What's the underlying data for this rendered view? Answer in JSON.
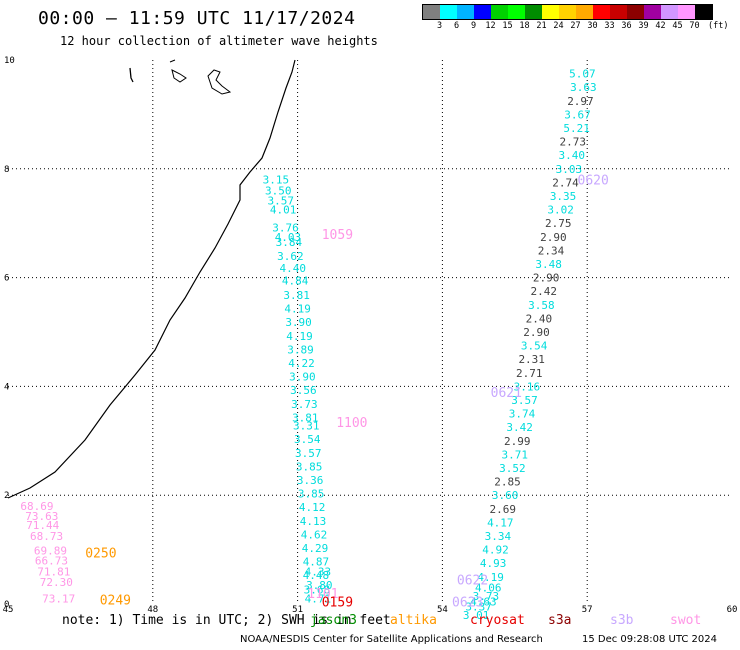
{
  "title": "00:00 – 11:59 UTC 11/17/2024",
  "subtitle": "12 hour collection of altimeter wave heights",
  "colorbar": {
    "unit": "(ft)",
    "labels": [
      "3",
      "6",
      "9",
      "12",
      "15",
      "18",
      "21",
      "24",
      "27",
      "30",
      "33",
      "36",
      "39",
      "42",
      "45",
      "70"
    ],
    "colors": [
      "#808080",
      "#00ffff",
      "#00b4ff",
      "#0000ff",
      "#00d200",
      "#00ff00",
      "#008c00",
      "#ffff00",
      "#ffd200",
      "#ffaa00",
      "#ff0000",
      "#c80000",
      "#8c0000",
      "#a000a0",
      "#d296ff",
      "#ff96ff",
      "#000000"
    ]
  },
  "footer": {
    "note": "note: 1) Time is in UTC; 2) SWH is in feet",
    "satellites": [
      {
        "name": "jason3",
        "color": "#008c00"
      },
      {
        "name": "altika",
        "color": "#ff9900"
      },
      {
        "name": "cryosat",
        "color": "#e60000"
      },
      {
        "name": "s3a",
        "color": "#8c0000"
      },
      {
        "name": "s3b",
        "color": "#c8a8ff"
      },
      {
        "name": "swot",
        "color": "#ff96e6"
      }
    ],
    "credit": "NOAA/NESDIS Center for Satellite Applications and Research",
    "generated": "15 Dec 09:28:08 UTC 2024"
  },
  "chart_data": {
    "type": "scatter",
    "title": "00:00 – 11:59 UTC 11/17/2024",
    "xlabel": "",
    "ylabel": "",
    "xlim": [
      45,
      60
    ],
    "ylim": [
      0,
      10
    ],
    "x_ticks": [
      45,
      48,
      51,
      54,
      57,
      60
    ],
    "y_ticks": [
      0,
      2,
      4,
      6,
      8,
      10
    ],
    "grid": true,
    "track_labels": [
      {
        "x": 51.5,
        "y": 6.8,
        "text": "1059",
        "color": "#ff96e6"
      },
      {
        "x": 51.8,
        "y": 3.35,
        "text": "1100",
        "color": "#ff96e6"
      },
      {
        "x": 51.2,
        "y": 0.2,
        "text": "1101",
        "color": "#ff96e6"
      },
      {
        "x": 51.5,
        "y": 0.05,
        "text": "0159",
        "color": "#e60000"
      },
      {
        "x": 46.6,
        "y": 0.95,
        "text": "0250",
        "color": "#ff9900"
      },
      {
        "x": 46.9,
        "y": 0.08,
        "text": "0249",
        "color": "#ff9900"
      },
      {
        "x": 56.8,
        "y": 7.8,
        "text": "0620",
        "color": "#c8a8ff"
      },
      {
        "x": 55.0,
        "y": 3.9,
        "text": "0621",
        "color": "#c8a8ff"
      },
      {
        "x": 54.3,
        "y": 0.45,
        "text": "0622",
        "color": "#c8a8ff"
      },
      {
        "x": 54.2,
        "y": 0.05,
        "text": "0623",
        "color": "#c8a8ff"
      }
    ],
    "series": [
      {
        "satellite": "swot",
        "color": "#ff96e6",
        "points": [
          {
            "x": 45.6,
            "y": 1.8,
            "v": "68.69"
          },
          {
            "x": 45.7,
            "y": 1.62,
            "v": "73.63"
          },
          {
            "x": 45.72,
            "y": 1.45,
            "v": "71.44"
          },
          {
            "x": 45.8,
            "y": 1.25,
            "v": "68.73"
          },
          {
            "x": 45.88,
            "y": 0.98,
            "v": "69.89"
          },
          {
            "x": 45.9,
            "y": 0.8,
            "v": "66.73"
          },
          {
            "x": 45.95,
            "y": 0.6,
            "v": "71.81"
          },
          {
            "x": 46.0,
            "y": 0.4,
            "v": "72.30"
          },
          {
            "x": 46.05,
            "y": 0.1,
            "v": "73.17"
          }
        ]
      },
      {
        "satellite": "s3b-cyan",
        "color": "#00dcdc",
        "points": [
          {
            "x": 50.55,
            "y": 7.8,
            "v": "3.15"
          },
          {
            "x": 50.6,
            "y": 7.6,
            "v": "3.50"
          },
          {
            "x": 50.65,
            "y": 7.42,
            "v": "3.57"
          },
          {
            "x": 50.7,
            "y": 7.25,
            "v": "4.01"
          },
          {
            "x": 50.75,
            "y": 6.92,
            "v": "3.76"
          },
          {
            "x": 50.8,
            "y": 6.75,
            "v": "4.03"
          },
          {
            "x": 50.82,
            "y": 6.65,
            "v": "3.84"
          },
          {
            "x": 50.85,
            "y": 6.4,
            "v": "3.62"
          },
          {
            "x": 50.9,
            "y": 6.18,
            "v": "4.40"
          },
          {
            "x": 50.95,
            "y": 5.95,
            "v": "4.84"
          },
          {
            "x": 50.98,
            "y": 5.68,
            "v": "3.81"
          },
          {
            "x": 51.0,
            "y": 5.43,
            "v": "4.19"
          },
          {
            "x": 51.02,
            "y": 5.18,
            "v": "3.90"
          },
          {
            "x": 51.04,
            "y": 4.93,
            "v": "4.19"
          },
          {
            "x": 51.06,
            "y": 4.68,
            "v": "3.89"
          },
          {
            "x": 51.08,
            "y": 4.43,
            "v": "4.22"
          },
          {
            "x": 51.1,
            "y": 4.18,
            "v": "3.90"
          },
          {
            "x": 51.12,
            "y": 3.93,
            "v": "3.56"
          },
          {
            "x": 51.14,
            "y": 3.68,
            "v": "3.73"
          },
          {
            "x": 51.16,
            "y": 3.43,
            "v": "3.81"
          },
          {
            "x": 51.18,
            "y": 3.28,
            "v": "3.31"
          },
          {
            "x": 51.2,
            "y": 3.03,
            "v": "3.54"
          },
          {
            "x": 51.22,
            "y": 2.78,
            "v": "3.57"
          },
          {
            "x": 51.24,
            "y": 2.53,
            "v": "3.85"
          },
          {
            "x": 51.26,
            "y": 2.28,
            "v": "3.36"
          },
          {
            "x": 51.28,
            "y": 2.03,
            "v": "3.85"
          },
          {
            "x": 51.3,
            "y": 1.78,
            "v": "4.12"
          },
          {
            "x": 51.32,
            "y": 1.53,
            "v": "4.13"
          },
          {
            "x": 51.34,
            "y": 1.28,
            "v": "4.62"
          },
          {
            "x": 51.36,
            "y": 1.03,
            "v": "4.29"
          },
          {
            "x": 51.38,
            "y": 0.78,
            "v": "4.87"
          },
          {
            "x": 51.42,
            "y": 0.6,
            "v": "4.33"
          },
          {
            "x": 51.38,
            "y": 0.53,
            "v": "4.48"
          },
          {
            "x": 51.45,
            "y": 0.35,
            "v": "3.80"
          },
          {
            "x": 51.4,
            "y": 0.27,
            "v": "3.68"
          },
          {
            "x": 51.42,
            "y": 0.1,
            "v": "4.71"
          }
        ]
      },
      {
        "satellite": "s3b-east",
        "mixed": true,
        "points": [
          {
            "x": 56.9,
            "y": 9.75,
            "v": "5.07",
            "color": "#00dcdc"
          },
          {
            "x": 56.92,
            "y": 9.5,
            "v": "3.63",
            "color": "#00dcdc"
          },
          {
            "x": 56.86,
            "y": 9.25,
            "v": "2.97",
            "color": "#404040"
          },
          {
            "x": 56.8,
            "y": 9.0,
            "v": "3.67",
            "color": "#00dcdc"
          },
          {
            "x": 56.78,
            "y": 8.75,
            "v": "5.21",
            "color": "#00dcdc"
          },
          {
            "x": 56.7,
            "y": 8.5,
            "v": "2.73",
            "color": "#404040"
          },
          {
            "x": 56.68,
            "y": 8.25,
            "v": "3.40",
            "color": "#00dcdc"
          },
          {
            "x": 56.62,
            "y": 8.0,
            "v": "3.03",
            "color": "#00dcdc"
          },
          {
            "x": 56.55,
            "y": 7.75,
            "v": "2.74",
            "color": "#404040"
          },
          {
            "x": 56.5,
            "y": 7.5,
            "v": "3.35",
            "color": "#00dcdc"
          },
          {
            "x": 56.45,
            "y": 7.25,
            "v": "3.02",
            "color": "#00dcdc"
          },
          {
            "x": 56.4,
            "y": 7.0,
            "v": "2.75",
            "color": "#404040"
          },
          {
            "x": 56.3,
            "y": 6.75,
            "v": "2.90",
            "color": "#404040"
          },
          {
            "x": 56.25,
            "y": 6.5,
            "v": "2.34",
            "color": "#404040"
          },
          {
            "x": 56.2,
            "y": 6.25,
            "v": "3.48",
            "color": "#00dcdc"
          },
          {
            "x": 56.15,
            "y": 6.0,
            "v": "2.90",
            "color": "#404040"
          },
          {
            "x": 56.1,
            "y": 5.75,
            "v": "2.42",
            "color": "#404040"
          },
          {
            "x": 56.05,
            "y": 5.5,
            "v": "3.58",
            "color": "#00dcdc"
          },
          {
            "x": 56.0,
            "y": 5.25,
            "v": "2.40",
            "color": "#404040"
          },
          {
            "x": 55.95,
            "y": 5.0,
            "v": "2.90",
            "color": "#404040"
          },
          {
            "x": 55.9,
            "y": 4.75,
            "v": "3.54",
            "color": "#00dcdc"
          },
          {
            "x": 55.85,
            "y": 4.5,
            "v": "2.31",
            "color": "#404040"
          },
          {
            "x": 55.8,
            "y": 4.25,
            "v": "2.71",
            "color": "#404040"
          },
          {
            "x": 55.75,
            "y": 4.0,
            "v": "3.16",
            "color": "#00dcdc"
          },
          {
            "x": 55.7,
            "y": 3.75,
            "v": "3.57",
            "color": "#00dcdc"
          },
          {
            "x": 55.65,
            "y": 3.5,
            "v": "3.74",
            "color": "#00dcdc"
          },
          {
            "x": 55.6,
            "y": 3.25,
            "v": "3.42",
            "color": "#00dcdc"
          },
          {
            "x": 55.55,
            "y": 3.0,
            "v": "2.99",
            "color": "#404040"
          },
          {
            "x": 55.5,
            "y": 2.75,
            "v": "3.71",
            "color": "#00dcdc"
          },
          {
            "x": 55.45,
            "y": 2.5,
            "v": "3.52",
            "color": "#00dcdc"
          },
          {
            "x": 55.35,
            "y": 2.25,
            "v": "2.85",
            "color": "#404040"
          },
          {
            "x": 55.3,
            "y": 2.0,
            "v": "3.60",
            "color": "#00dcdc"
          },
          {
            "x": 55.25,
            "y": 1.75,
            "v": "2.69",
            "color": "#404040"
          },
          {
            "x": 55.2,
            "y": 1.5,
            "v": "4.17",
            "color": "#00dcdc"
          },
          {
            "x": 55.15,
            "y": 1.25,
            "v": "3.34",
            "color": "#00dcdc"
          },
          {
            "x": 55.1,
            "y": 1.0,
            "v": "4.92",
            "color": "#00dcdc"
          },
          {
            "x": 55.05,
            "y": 0.75,
            "v": "4.93",
            "color": "#00dcdc"
          },
          {
            "x": 55.0,
            "y": 0.5,
            "v": "4.19",
            "color": "#00dcdc"
          },
          {
            "x": 54.95,
            "y": 0.3,
            "v": "4.06",
            "color": "#00dcdc"
          },
          {
            "x": 54.9,
            "y": 0.15,
            "v": "3.73",
            "color": "#00dcdc"
          },
          {
            "x": 54.85,
            "y": 0.05,
            "v": "4.63",
            "color": "#00dcdc"
          },
          {
            "x": 54.75,
            "y": -0.05,
            "v": "3.37",
            "color": "#00dcdc"
          },
          {
            "x": 54.7,
            "y": -0.2,
            "v": "3.01",
            "color": "#00dcdc"
          }
        ]
      }
    ]
  }
}
